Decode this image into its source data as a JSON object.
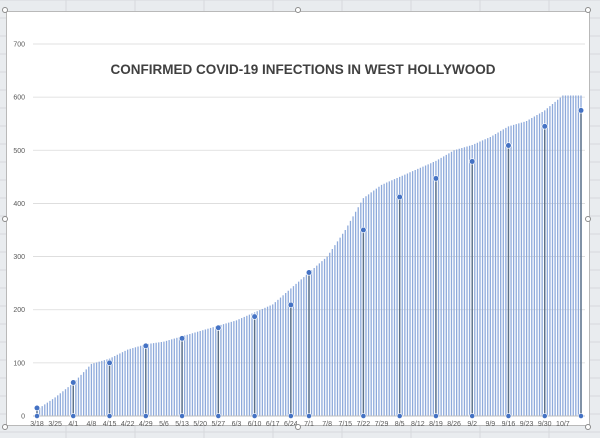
{
  "chart_data": {
    "type": "bar",
    "title": "CONFIRMED COVID-19 INFECTIONS IN WEST HOLLYWOOD",
    "xlabel": "",
    "ylabel": "",
    "ylim": [
      0,
      700
    ],
    "yticks": [
      0,
      100,
      200,
      300,
      400,
      500,
      600,
      700
    ],
    "x_tick_labels": [
      "3/18",
      "3/25",
      "4/1",
      "4/8",
      "4/15",
      "4/22",
      "4/29",
      "5/6",
      "5/13",
      "5/20",
      "5/27",
      "6/3",
      "6/10",
      "6/17",
      "6/24",
      "7/1",
      "7/8",
      "7/15",
      "7/22",
      "7/29",
      "8/5",
      "8/12",
      "8/19",
      "8/26",
      "9/2",
      "9/9",
      "9/16",
      "9/23",
      "9/30",
      "10/7"
    ],
    "grid": true,
    "legend": "none",
    "bar_color": "#8eaadb",
    "marker_color": "#4472c4",
    "weekly_series": {
      "dates": [
        "3/18",
        "3/25",
        "4/1",
        "4/8",
        "4/15",
        "4/22",
        "4/29",
        "5/6",
        "5/13",
        "5/20",
        "5/27",
        "6/3",
        "6/10",
        "6/17",
        "6/24",
        "7/1",
        "7/8",
        "7/15",
        "7/22",
        "7/29",
        "8/5",
        "8/12",
        "8/19",
        "8/26",
        "9/2",
        "9/9",
        "9/16",
        "9/23",
        "9/30",
        "10/7"
      ],
      "values": [
        12,
        35,
        62,
        98,
        108,
        125,
        135,
        140,
        150,
        160,
        170,
        180,
        195,
        210,
        240,
        270,
        300,
        350,
        410,
        435,
        450,
        465,
        480,
        500,
        510,
        525,
        545,
        555,
        575,
        603
      ]
    },
    "markers": [
      {
        "date": "3/18",
        "value": 15
      },
      {
        "date": "4/1",
        "value": 63
      },
      {
        "date": "4/15",
        "value": 100
      },
      {
        "date": "4/29",
        "value": 132
      },
      {
        "date": "5/13",
        "value": 146
      },
      {
        "date": "5/27",
        "value": 166
      },
      {
        "date": "6/10",
        "value": 187
      },
      {
        "date": "6/24",
        "value": 209
      },
      {
        "date": "7/1",
        "value": 270
      },
      {
        "date": "7/22",
        "value": 350
      },
      {
        "date": "8/5",
        "value": 412
      },
      {
        "date": "8/19",
        "value": 447
      },
      {
        "date": "9/2",
        "value": 479
      },
      {
        "date": "9/16",
        "value": 509
      },
      {
        "date": "9/30",
        "value": 545
      },
      {
        "date": "10/14",
        "value": 575
      }
    ]
  }
}
